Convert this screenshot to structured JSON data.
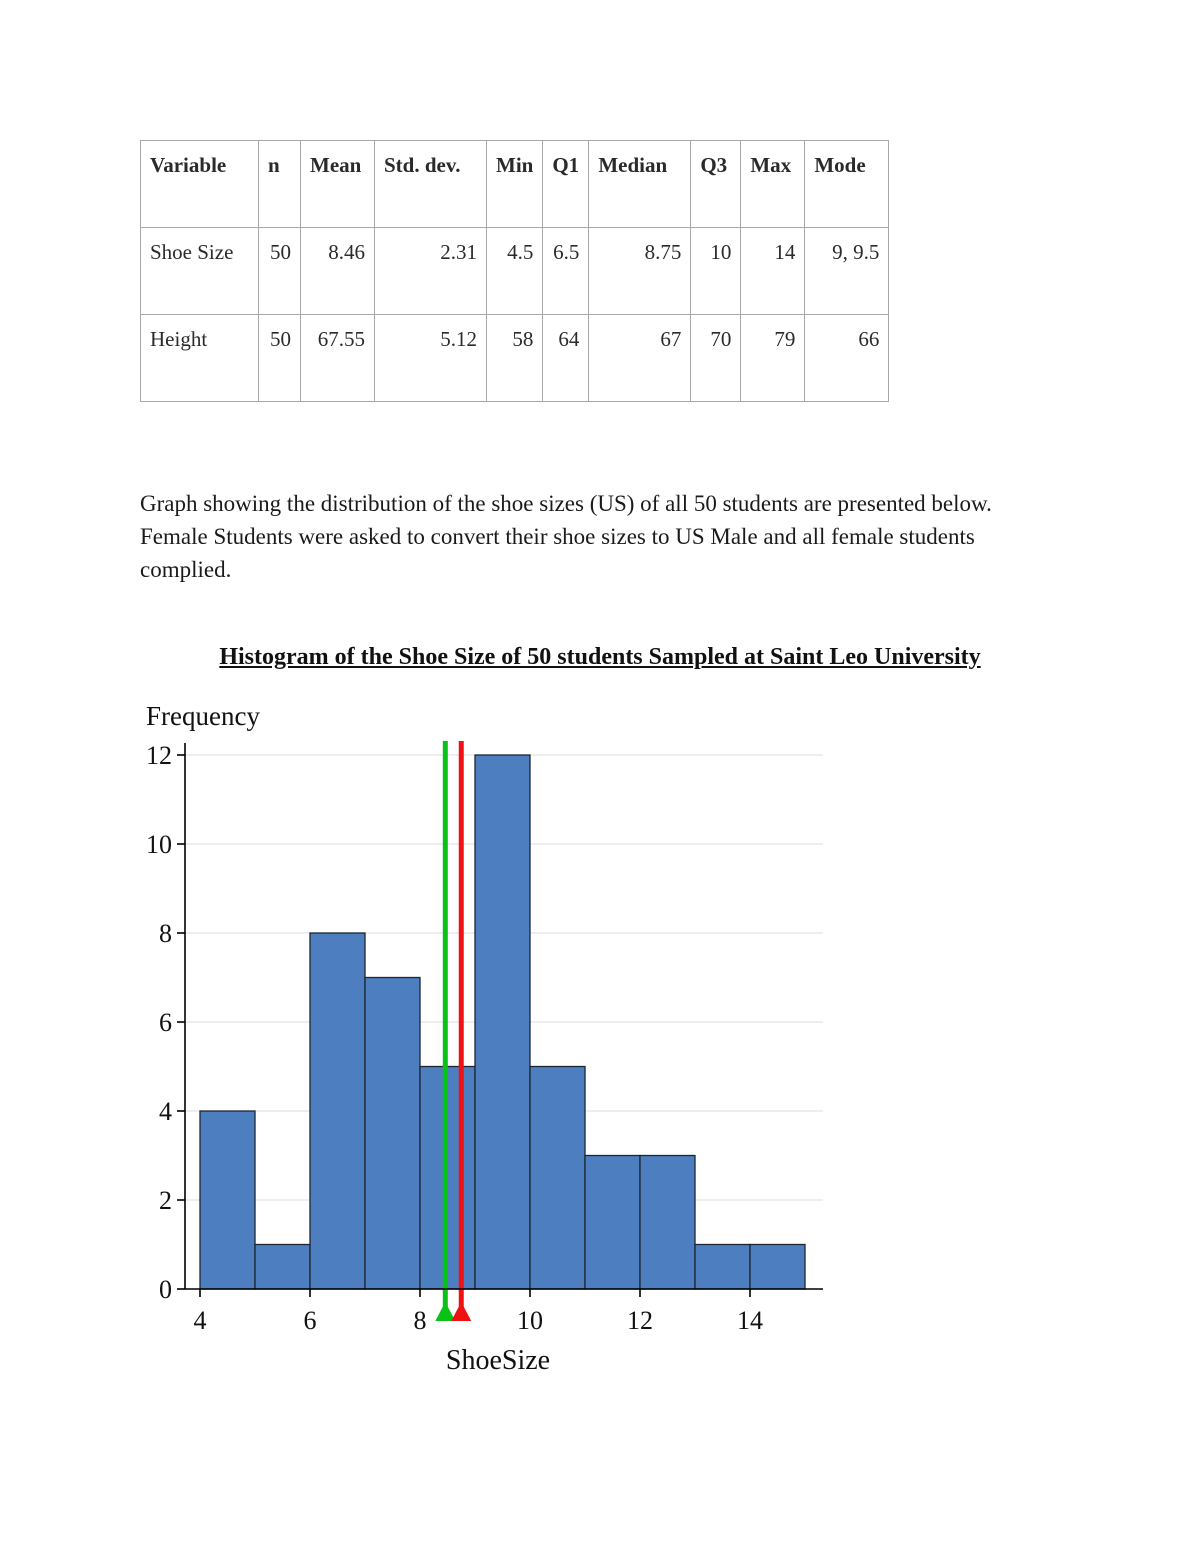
{
  "table": {
    "columns": [
      "Variable",
      "n",
      "Mean",
      "Std. dev.",
      "Min",
      "Q1",
      "Median",
      "Q3",
      "Max",
      "Mode"
    ],
    "rows": [
      [
        "Shoe Size",
        "50",
        "8.46",
        "2.31",
        "4.5",
        "6.5",
        "8.75",
        "10",
        "14",
        "9, 9.5"
      ],
      [
        "Height",
        "50",
        "67.55",
        "5.12",
        "58",
        "64",
        "67",
        "70",
        "79",
        "66"
      ]
    ]
  },
  "paragraph": "Graph showing the distribution of the shoe sizes (US) of all 50 students are presented below. Female Students were asked to convert their shoe sizes to US Male and all female students complied.",
  "chart_title": "Histogram of the Shoe Size of 50 students Sampled at Saint Leo University",
  "chart_data": {
    "type": "bar",
    "subtype": "histogram",
    "title": "Histogram of the Shoe Size of 50 students Sampled at Saint Leo University",
    "xlabel": "ShoeSize",
    "ylabel": "Frequency",
    "bin_width": 1,
    "bin_edges": [
      4,
      5,
      6,
      7,
      8,
      9,
      10,
      11,
      12,
      13,
      14,
      15
    ],
    "frequencies": [
      4,
      1,
      8,
      7,
      5,
      12,
      5,
      3,
      3,
      1,
      1
    ],
    "total_n": 50,
    "xticks": [
      4,
      6,
      8,
      10,
      12,
      14
    ],
    "yticks": [
      0,
      2,
      4,
      6,
      8,
      10,
      12
    ],
    "xlim": [
      3.7,
      15.4
    ],
    "ylim": [
      0,
      12
    ],
    "grid": true,
    "grid_color": "#dcdcdc",
    "bar_color": "#4d7ebf",
    "bar_border_color": "#1c2530",
    "axis_color": "#000000",
    "legend_position": "none",
    "reference_lines": [
      {
        "name": "mean",
        "value": 8.46,
        "color": "#08c217"
      },
      {
        "name": "median",
        "value": 8.75,
        "color": "#ef1212"
      }
    ]
  }
}
